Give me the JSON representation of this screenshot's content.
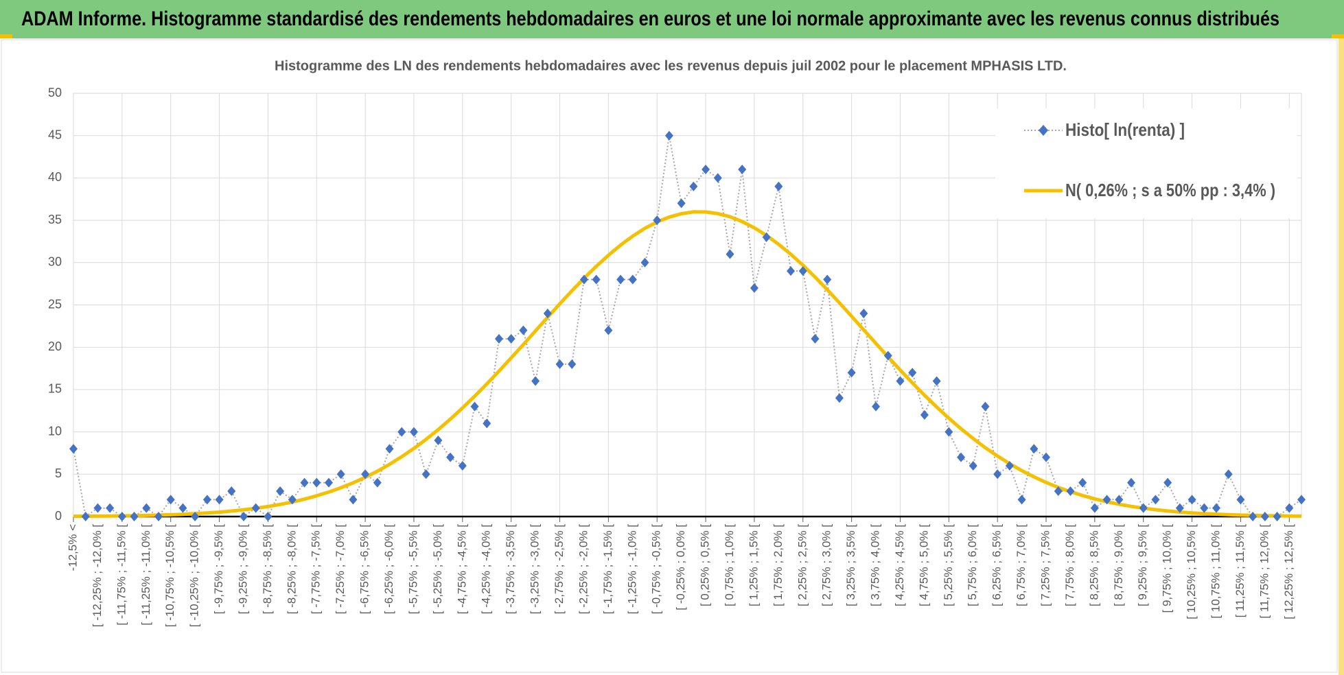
{
  "header": {
    "title": "ADAM Informe. Histogramme standardisé des rendements hebdomadaires en euros et une loi normale approximante avec les revenus connus distribués"
  },
  "chart_data": {
    "type": "line",
    "title": "Histogramme des LN des rendements hebdomadaires avec les revenus depuis juil 2002 pour le placement MPHASIS LTD.",
    "categories": [
      "-12,5% <",
      null,
      "[ -12,25% ; -12,0% [",
      null,
      "[ -11,75% ; -11,5% [",
      null,
      "[ -11,25% ; -11,0% [",
      null,
      "[ -10,75% ; -10,5% [",
      null,
      "[ -10,25% ; -10,0% [",
      null,
      "[ -9,75% ; -9,5% [",
      null,
      "[ -9,25% ; -9,0% [",
      null,
      "[ -8,75% ; -8,5% [",
      null,
      "[ -8,25% ; -8,0% [",
      null,
      "[ -7,75% ; -7,5% [",
      null,
      "[ -7,25% ; -7,0% [",
      null,
      "[ -6,75% ; -6,5% [",
      null,
      "[ -6,25% ; -6,0% [",
      null,
      "[ -5,75% ; -5,5% [",
      null,
      "[ -5,25% ; -5,0% [",
      null,
      "[ -4,75% ; -4,5% [",
      null,
      "[ -4,25% ; -4,0% [",
      null,
      "[ -3,75% ; -3,5% [",
      null,
      "[ -3,25% ; -3,0% [",
      null,
      "[ -2,75% ; -2,5% [",
      null,
      "[ -2,25% ; -2,0% [",
      null,
      "[ -1,75% ; -1,5% [",
      null,
      "[ -1,25% ; -1,0% [",
      null,
      "[ -0,75% ; -0,5% [",
      null,
      "[ -0,25% ; 0,0% [",
      null,
      "[ 0,25% ; 0,5% [",
      null,
      "[ 0,75% ; 1,0% [",
      null,
      "[ 1,25% ; 1,5% [",
      null,
      "[ 1,75% ; 2,0% [",
      null,
      "[ 2,25% ; 2,5% [",
      null,
      "[ 2,75% ; 3,0% [",
      null,
      "[ 3,25% ; 3,5% [",
      null,
      "[ 3,75% ; 4,0% [",
      null,
      "[ 4,25% ; 4,5% [",
      null,
      "[ 4,75% ; 5,0% [",
      null,
      "[ 5,25% ; 5,5% [",
      null,
      "[ 5,75% ; 6,0% [",
      null,
      "[ 6,25% ; 6,5% [",
      null,
      "[ 6,75% ; 7,0% [",
      null,
      "[ 7,25% ; 7,5% [",
      null,
      "[ 7,75% ; 8,0% [",
      null,
      "[ 8,25% ; 8,5% [",
      null,
      "[ 8,75% ; 9,0% [",
      null,
      "[ 9,25% ; 9,5% [",
      null,
      "[ 9,75% ; 10,0% [",
      null,
      "[ 10,25% ; 10,5% [",
      null,
      "[ 10,75% ; 11,0% [",
      null,
      "[ 11,25% ; 11,5% [",
      null,
      "[ 11,75% ; 12,0% [",
      null,
      "[ 12,25% ; 12,5% [",
      null
    ],
    "series": [
      {
        "name": "Histo[ ln(renta) ]",
        "color": "#4472c4",
        "values": [
          8,
          0,
          1,
          1,
          0,
          0,
          1,
          0,
          2,
          1,
          0,
          2,
          2,
          3,
          0,
          1,
          0,
          3,
          2,
          4,
          4,
          4,
          5,
          2,
          5,
          4,
          8,
          10,
          10,
          5,
          9,
          7,
          6,
          13,
          11,
          21,
          21,
          22,
          16,
          24,
          18,
          18,
          28,
          28,
          22,
          28,
          28,
          30,
          35,
          45,
          37,
          39,
          41,
          40,
          31,
          41,
          27,
          33,
          39,
          29,
          29,
          21,
          28,
          14,
          17,
          24,
          13,
          19,
          16,
          17,
          12,
          16,
          10,
          7,
          6,
          13,
          5,
          6,
          2,
          8,
          7,
          3,
          3,
          4,
          1,
          2,
          2,
          4,
          1,
          2,
          4,
          1,
          2,
          1,
          1,
          5,
          2,
          0,
          0,
          0,
          1,
          2
        ]
      },
      {
        "name": "N( 0,26% ; s a 50% pp : 3,4% )",
        "color": "#f5c000",
        "values": [
          0.03,
          0.04,
          0.05,
          0.06,
          0.08,
          0.1,
          0.13,
          0.17,
          0.21,
          0.27,
          0.34,
          0.42,
          0.52,
          0.65,
          0.8,
          0.97,
          1.18,
          1.43,
          1.72,
          2.05,
          2.45,
          2.89,
          3.4,
          3.98,
          4.63,
          5.36,
          6.17,
          7.07,
          8.05,
          9.12,
          10.27,
          11.51,
          12.83,
          14.21,
          15.67,
          17.18,
          18.74,
          20.32,
          21.93,
          23.53,
          25.12,
          26.67,
          28.15,
          29.56,
          30.87,
          32.07,
          33.13,
          34.05,
          34.8,
          35.38,
          35.77,
          36.0,
          35.98,
          35.79,
          35.42,
          34.85,
          34.11,
          33.21,
          32.16,
          30.98,
          29.68,
          28.28,
          26.79,
          25.25,
          23.66,
          22.05,
          20.45,
          18.86,
          17.3,
          15.79,
          14.33,
          12.94,
          11.61,
          10.37,
          9.21,
          8.13,
          7.15,
          6.24,
          5.42,
          4.69,
          4.03,
          3.44,
          2.93,
          2.48,
          2.08,
          1.74,
          1.45,
          1.2,
          0.99,
          0.81,
          0.66,
          0.53,
          0.43,
          0.35,
          0.28,
          0.22,
          0.17,
          0.13,
          0.1,
          0.08,
          0.06,
          0.05
        ]
      }
    ],
    "ylim": [
      0,
      50
    ],
    "yticks": [
      0,
      5,
      10,
      15,
      20,
      25,
      30,
      35,
      40,
      45,
      50
    ],
    "grid": true,
    "legend": "top-right"
  }
}
